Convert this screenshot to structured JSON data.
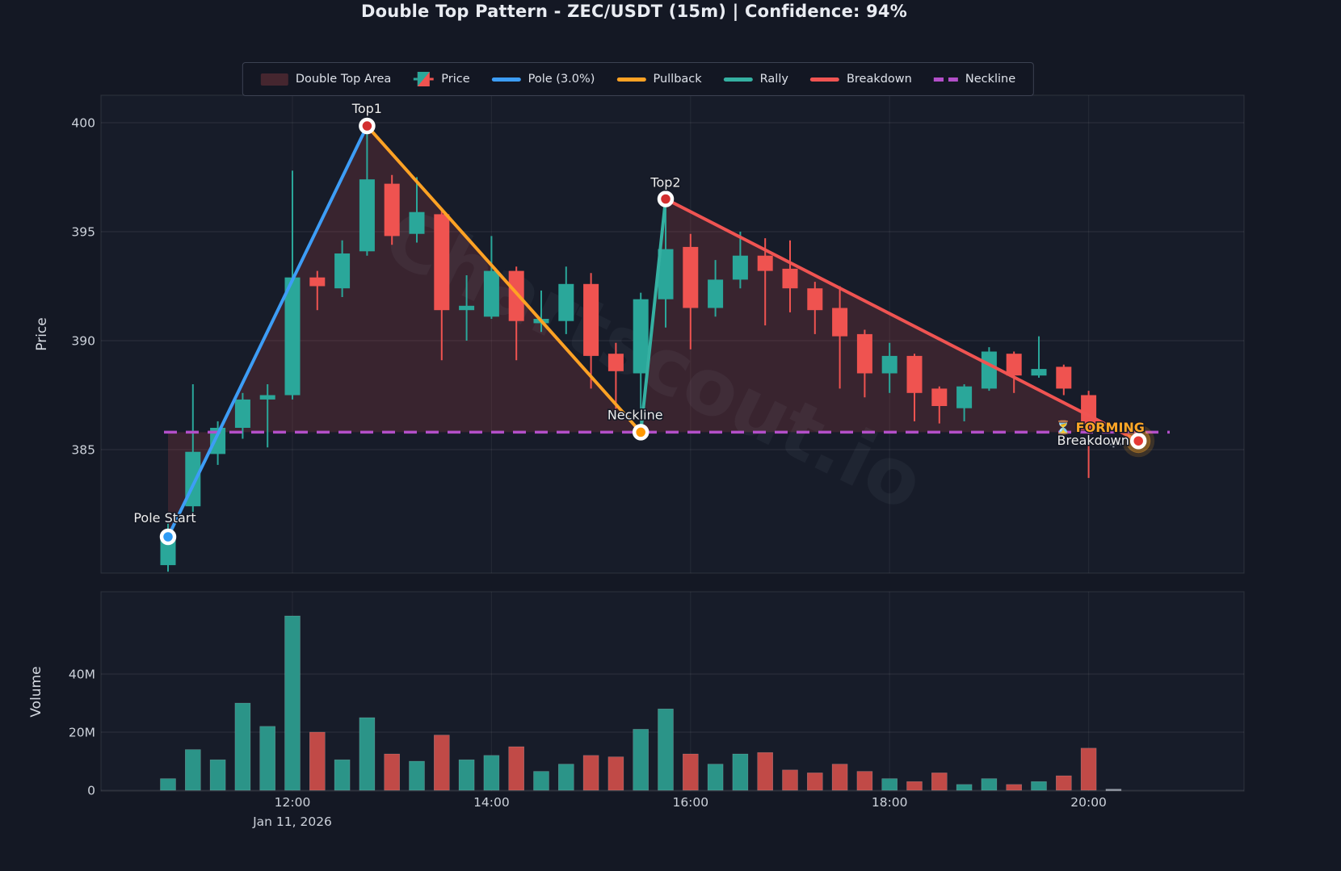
{
  "title": "Double Top Pattern - ZEC/USDT (15m) | Confidence: 94%",
  "watermark": "Chartscout.io",
  "colors": {
    "background": "#141824",
    "panel": "#171c29",
    "grid": "rgba(255,255,255,0.08)",
    "grid_vertical": "rgba(255,255,255,0.055)",
    "up": "#2aa79a",
    "down": "#ef5350",
    "doji": "#939aa6",
    "volume_up": "#2b9488",
    "volume_down": "#c14a47",
    "pole": "#3d9df6",
    "pullback": "#ffa224",
    "rally": "#35b0a2",
    "breakdown": "#f05452",
    "neckline": "#b34fc9",
    "area": "rgba(239,83,80,0.16)",
    "area_swatch": "#45262f",
    "marker_top": "#d32f2f",
    "marker_pole": "#2e9bf5",
    "marker_neckline": "#ff9800",
    "marker_breakdown": "#e53935",
    "forming": "#ffa726",
    "text": "#ccd1da",
    "annotation_text": "#ececec"
  },
  "legend": {
    "items": [
      {
        "label": "Double Top Area",
        "swatch": "area",
        "color": "#45262f"
      },
      {
        "label": "Price",
        "swatch": "candles",
        "color": "#2aa79a"
      },
      {
        "label": "Pole (3.0%)",
        "swatch": "line",
        "color": "#3d9df6"
      },
      {
        "label": "Pullback",
        "swatch": "line",
        "color": "#ffa224"
      },
      {
        "label": "Rally",
        "swatch": "line",
        "color": "#35b0a2"
      },
      {
        "label": "Breakdown",
        "swatch": "line",
        "color": "#f05452"
      },
      {
        "label": "Neckline",
        "swatch": "dash",
        "color": "#b34fc9"
      }
    ]
  },
  "price_axis": {
    "title": "Price",
    "ticks": [
      {
        "label": "400",
        "value": 400
      },
      {
        "label": "395",
        "value": 395
      },
      {
        "label": "390",
        "value": 390
      },
      {
        "label": "385",
        "value": 385
      }
    ]
  },
  "volume_axis": {
    "title": "Volume",
    "ticks": [
      {
        "label": "40M",
        "value": 40
      },
      {
        "label": "20M",
        "value": 20
      },
      {
        "label": "0",
        "value": 0
      }
    ]
  },
  "x_axis": {
    "ticks": [
      {
        "label": "12:00",
        "index": 5
      },
      {
        "label": "14:00",
        "index": 13
      },
      {
        "label": "16:00",
        "index": 21
      },
      {
        "label": "18:00",
        "index": 29
      },
      {
        "label": "20:00",
        "index": 37
      }
    ],
    "date_label": "Jan 11, 2026",
    "date_anchor_index": 5
  },
  "chart_data": {
    "type": "candlestick",
    "title": "Double Top Pattern - ZEC/USDT (15m) | Confidence: 94%",
    "symbol": "ZEC/USDT",
    "interval": "15m",
    "confidence": "94%",
    "date": "Jan 11, 2026",
    "ylabel": "Price",
    "ylabel2": "Volume",
    "ylim_price": [
      379.2,
      401.3
    ],
    "ylim_volume": [
      0,
      68
    ],
    "grid": true,
    "legend_position": "top-center",
    "columns": [
      "time",
      "open",
      "high",
      "low",
      "close"
    ],
    "rows": [
      [
        "10:45",
        379.7,
        381.6,
        379.4,
        381.0
      ],
      [
        "11:00",
        382.4,
        388.0,
        382.0,
        384.9
      ],
      [
        "11:15",
        384.8,
        386.3,
        384.3,
        386.0
      ],
      [
        "11:30",
        386.0,
        387.6,
        385.5,
        387.3
      ],
      [
        "11:45",
        387.3,
        388.0,
        385.1,
        387.5
      ],
      [
        "12:00",
        387.5,
        397.8,
        387.3,
        392.9
      ],
      [
        "12:15",
        392.9,
        393.2,
        391.4,
        392.5
      ],
      [
        "12:30",
        392.4,
        394.6,
        392.0,
        394.0
      ],
      [
        "12:45",
        394.1,
        399.8,
        393.9,
        397.4
      ],
      [
        "13:00",
        397.2,
        397.6,
        394.4,
        394.8
      ],
      [
        "13:15",
        394.9,
        397.5,
        394.5,
        395.9
      ],
      [
        "13:30",
        395.8,
        396.0,
        389.1,
        391.4
      ],
      [
        "13:45",
        391.4,
        393.0,
        390.0,
        391.6
      ],
      [
        "14:00",
        391.1,
        394.8,
        391.0,
        393.2
      ],
      [
        "14:15",
        393.2,
        393.4,
        389.1,
        390.9
      ],
      [
        "14:30",
        390.8,
        392.3,
        390.4,
        391.0
      ],
      [
        "14:45",
        390.9,
        393.4,
        390.3,
        392.6
      ],
      [
        "15:00",
        392.6,
        393.1,
        387.8,
        389.3
      ],
      [
        "15:15",
        389.4,
        389.9,
        386.5,
        388.6
      ],
      [
        "15:30",
        388.5,
        392.2,
        385.8,
        391.9
      ],
      [
        "15:45",
        391.9,
        396.5,
        390.6,
        394.2
      ],
      [
        "16:00",
        394.3,
        394.9,
        389.6,
        391.5
      ],
      [
        "16:15",
        391.5,
        393.7,
        391.1,
        392.8
      ],
      [
        "16:30",
        392.8,
        395.0,
        392.4,
        393.9
      ],
      [
        "16:45",
        393.9,
        394.7,
        390.7,
        393.2
      ],
      [
        "17:00",
        393.3,
        394.6,
        391.3,
        392.4
      ],
      [
        "17:15",
        392.4,
        392.7,
        390.3,
        391.4
      ],
      [
        "17:30",
        391.5,
        392.5,
        387.8,
        390.2
      ],
      [
        "17:45",
        390.3,
        390.5,
        387.4,
        388.5
      ],
      [
        "18:00",
        388.5,
        389.9,
        387.6,
        389.3
      ],
      [
        "18:15",
        389.3,
        389.4,
        386.3,
        387.6
      ],
      [
        "18:30",
        387.8,
        387.9,
        386.2,
        387.0
      ],
      [
        "18:45",
        386.9,
        388.0,
        386.3,
        387.9
      ],
      [
        "19:00",
        387.8,
        389.7,
        387.7,
        389.5
      ],
      [
        "19:15",
        389.4,
        389.5,
        387.6,
        388.4
      ],
      [
        "19:30",
        388.4,
        390.2,
        388.3,
        388.7
      ],
      [
        "19:45",
        388.8,
        388.9,
        387.5,
        387.8
      ],
      [
        "20:00",
        387.5,
        387.7,
        383.7,
        385.9
      ],
      [
        "20:15",
        385.3,
        385.5,
        385.1,
        385.3
      ]
    ],
    "volume": {
      "unit": "M",
      "values": [
        4,
        14,
        10.5,
        30,
        22,
        60,
        20,
        10.5,
        25,
        12.5,
        10,
        19,
        10.5,
        12,
        15,
        6.5,
        9,
        12,
        11.5,
        21,
        28,
        12.5,
        9,
        12.5,
        13,
        7,
        6,
        9,
        6.5,
        4,
        3,
        6,
        2,
        4,
        2,
        3,
        5,
        14.5,
        0.4
      ]
    },
    "pattern": {
      "name": "Double Top",
      "status": "FORMING",
      "neckline_level": 385.8,
      "pole_start": {
        "label": "Pole Start",
        "time": "10:45",
        "index": 0,
        "price": 381.0
      },
      "top1": {
        "label": "Top1",
        "time": "12:45",
        "index": 8,
        "price": 399.85
      },
      "neckline_point": {
        "label": "Neckline",
        "time": "15:30",
        "index": 19,
        "price": 385.8
      },
      "top2": {
        "label": "Top2",
        "time": "15:45",
        "index": 20,
        "price": 396.5
      },
      "breakdown": {
        "label": "Breakdown",
        "time": "20:30",
        "index": 39,
        "price": 385.4
      },
      "forming_label": "⏳ FORMING"
    }
  }
}
